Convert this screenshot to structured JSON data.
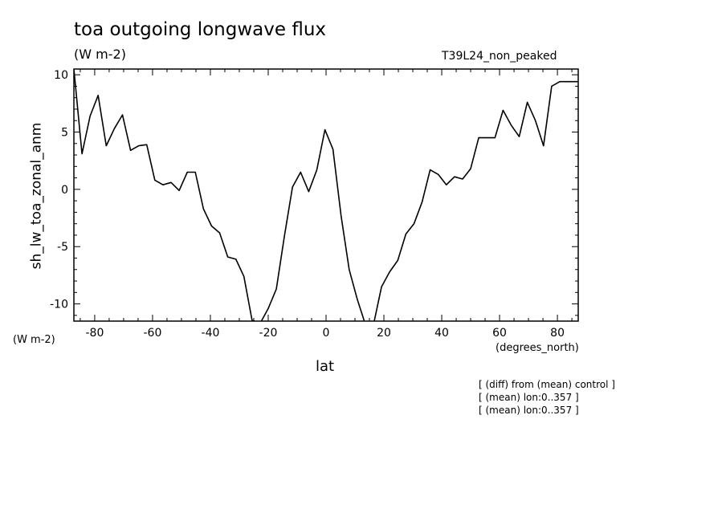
{
  "header": {
    "title": "toa outgoing longwave flux",
    "units": "(W m-2)",
    "run_name": "T39L24_non_peaked"
  },
  "axes": {
    "ylabel": "sh_lw_toa_zonal_anm",
    "yunits": "(W m-2)",
    "xlabel": "lat",
    "xunits": "(degrees_north)"
  },
  "notes": [
    "[ (diff) from (mean) control ]",
    "[ (mean) lon:0..357 ]",
    "[ (mean) lon:0..357 ]"
  ],
  "chart_data": {
    "type": "line",
    "title": "toa outgoing longwave flux",
    "xlabel": "lat",
    "ylabel": "sh_lw_toa_zonal_anm",
    "xlim": [
      -87.2,
      87.2
    ],
    "ylim": [
      -11.5,
      10.5
    ],
    "xticks": [
      -80,
      -60,
      -40,
      -20,
      0,
      20,
      40,
      60,
      80
    ],
    "xtick_labels": [
      "-80",
      "-60",
      "-40",
      "-20",
      "0",
      "20",
      "40",
      "60",
      "80"
    ],
    "yticks": [
      -10,
      -5,
      0,
      5,
      10
    ],
    "ytick_labels": [
      "-10",
      "-5",
      "0",
      "5",
      "10"
    ],
    "grid": false,
    "series": [
      {
        "x": [
          -87.2,
          -84.4,
          -81.6,
          -78.8,
          -76.0,
          -73.2,
          -70.4,
          -67.6,
          -64.8,
          -62.0,
          -59.2,
          -56.4,
          -53.6,
          -50.8,
          -48.0,
          -45.2,
          -42.4,
          -39.6,
          -36.8,
          -34.0,
          -31.2,
          -28.4,
          -25.6,
          -22.8,
          -20.0,
          -17.2,
          -14.4,
          -11.6,
          -8.8,
          -6.0,
          -3.2,
          -0.4,
          2.4,
          5.2,
          8.0,
          10.8,
          13.6,
          16.4,
          19.2,
          22.0,
          24.8,
          27.6,
          30.4,
          33.2,
          36.0,
          38.8,
          41.6,
          44.4,
          47.2,
          50.0,
          52.8,
          55.6,
          58.4,
          61.2,
          64.0,
          66.8,
          69.6,
          72.4,
          75.2,
          78.0,
          80.8,
          83.6,
          86.4,
          87.2
        ],
        "values": [
          10.5,
          3.1,
          6.4,
          8.2,
          3.8,
          5.3,
          6.5,
          3.4,
          3.8,
          3.9,
          0.8,
          0.4,
          0.6,
          -0.1,
          1.5,
          1.5,
          -1.7,
          -3.2,
          -3.8,
          -5.9,
          -6.1,
          -7.6,
          -11.4,
          -11.7,
          -10.4,
          -8.7,
          -4.1,
          0.2,
          1.5,
          -0.2,
          1.7,
          5.2,
          3.5,
          -2.3,
          -7.0,
          -9.6,
          -11.8,
          -11.8,
          -8.5,
          -7.2,
          -6.2,
          -3.9,
          -3.0,
          -1.1,
          1.7,
          1.3,
          0.4,
          1.1,
          0.9,
          1.8,
          4.5,
          4.5,
          4.5,
          6.9,
          5.6,
          4.6,
          7.6,
          6.0,
          3.8,
          9.0,
          9.4,
          9.4,
          9.4,
          9.4
        ]
      }
    ]
  }
}
